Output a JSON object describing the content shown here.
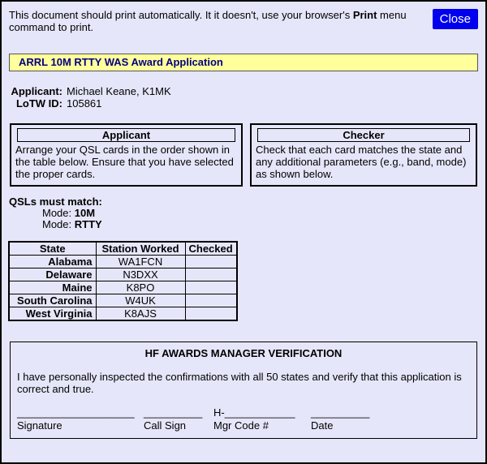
{
  "colors": {
    "page-bg": "#E6E6FA",
    "banner-bg": "#FFFF9C",
    "banner-text": "#000080",
    "close-bg": "#0000EE",
    "close-text": "#FFFFFF",
    "border": "#000000"
  },
  "header": {
    "notice_part1": "This document should print automatically. It it doesn't, use your browser's ",
    "notice_bold": "Print",
    "notice_part2": " menu command to print.",
    "close_label": "Close"
  },
  "banner": {
    "title": "ARRL 10M RTTY WAS Award Application"
  },
  "applicant_info": {
    "applicant_label": "Applicant:",
    "applicant_value": "Michael Keane, K1MK",
    "lotw_label": "LoTW ID:",
    "lotw_value": "105861"
  },
  "instruction_boxes": {
    "applicant": {
      "title": "Applicant",
      "body": "Arrange your QSL cards in the order shown in the table below. Ensure that you have selected the proper cards."
    },
    "checker": {
      "title": "Checker",
      "body": "Check that each card matches the state and any additional parameters (e.g., band, mode) as shown below."
    }
  },
  "qsl_match": {
    "heading": "QSLs must match:",
    "items": [
      {
        "label": "Mode:",
        "value": "10M"
      },
      {
        "label": "Mode:",
        "value": "RTTY"
      }
    ]
  },
  "qsl_table": {
    "headers": [
      "State",
      "Station Worked",
      "Checked"
    ],
    "rows": [
      {
        "state": "Alabama",
        "station": "WA1FCN",
        "checked": ""
      },
      {
        "state": "Delaware",
        "station": "N3DXX",
        "checked": ""
      },
      {
        "state": "Maine",
        "station": "K8PO",
        "checked": ""
      },
      {
        "state": "South Carolina",
        "station": "W4UK",
        "checked": ""
      },
      {
        "state": "West Virginia",
        "station": "K8AJS",
        "checked": ""
      }
    ]
  },
  "verification": {
    "title": "HF AWARDS MANAGER VERIFICATION",
    "body": "I have personally inspected the confirmations with all 50 states and verify that this application is correct and true.",
    "signature_fields": [
      {
        "line": "____________________",
        "label": "Signature"
      },
      {
        "line": "__________",
        "label": "Call Sign"
      },
      {
        "line": "H-____________",
        "label": "Mgr Code #"
      },
      {
        "line": "__________",
        "label": "Date"
      }
    ]
  }
}
